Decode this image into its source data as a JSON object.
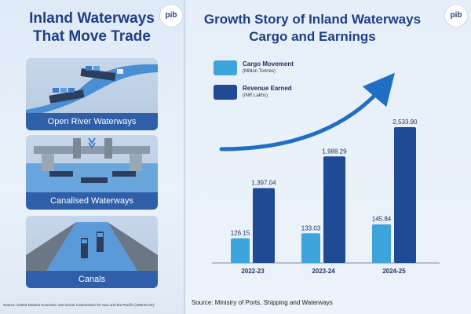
{
  "left": {
    "title_line1": "Inland Waterways",
    "title_line2": "That Move Trade",
    "cards": [
      {
        "label": "Open River Waterways"
      },
      {
        "label": "Canalised Waterways"
      },
      {
        "label": "Canals"
      }
    ],
    "source": "Source: United Nations Economic and Social Commission for Asia and the Pacific (UNESCAP)"
  },
  "logo_text": "pib",
  "chart_data": {
    "type": "bar",
    "title_line1": "Growth Story of Inland Waterways",
    "title_line2": "Cargo and Earnings",
    "categories": [
      "2022-23",
      "2023-24",
      "2024-25"
    ],
    "series": [
      {
        "name": "Cargo Movement",
        "unit": "(Million Tonnes)",
        "color": "#3ea4dc",
        "values": [
          126.15,
          133.03,
          145.84
        ],
        "labels": [
          "126.15",
          "133.03",
          "145.84"
        ]
      },
      {
        "name": "Revenue Earned",
        "unit": "(INR Lakhs)",
        "color": "#1f4a94",
        "values": [
          1397.04,
          1988.29,
          2533.9
        ],
        "labels": [
          "1,397.04",
          "1,988.29",
          "2,533.90"
        ]
      }
    ],
    "trend_arrow": true,
    "grid": false,
    "legend_position": "top-left"
  },
  "source": "Source: Ministry of Ports, Shipping and Waterways"
}
